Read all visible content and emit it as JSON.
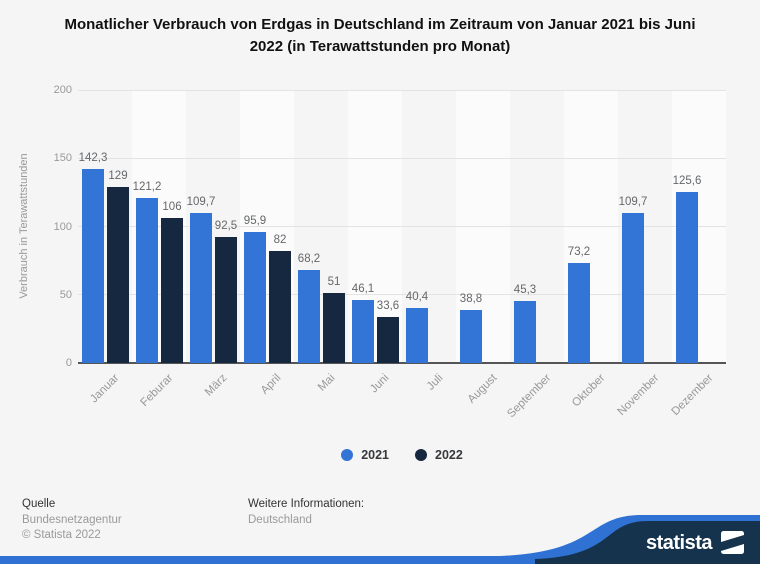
{
  "title": "Monatlicher Verbrauch von Erdgas in Deutschland im Zeitraum von Januar 2021 bis Juni 2022 (in Terawattstunden pro Monat)",
  "chart_data": {
    "type": "bar",
    "title": "Monatlicher Verbrauch von Erdgas in Deutschland im Zeitraum von Januar 2021 bis Juni 2022 (in Terawattstunden pro Monat)",
    "ylabel": "Verbrauch in Terawattstunden",
    "xlabel": "",
    "ylim": [
      0,
      200
    ],
    "yticks": [
      0,
      50,
      100,
      150,
      200
    ],
    "grid": true,
    "legend_position": "bottom-center",
    "categories": [
      "Januar",
      "Feburar",
      "März",
      "April",
      "Mai",
      "Juni",
      "Juli",
      "August",
      "September",
      "Oktober",
      "November",
      "Dezember"
    ],
    "series": [
      {
        "name": "2021",
        "color": "#3375d6",
        "values": [
          142.3,
          121.2,
          109.7,
          95.9,
          68.2,
          46.1,
          40.4,
          38.8,
          45.3,
          73.2,
          109.7,
          125.6
        ],
        "labels": [
          "142,3",
          "121,2",
          "109,7",
          "95,9",
          "68,2",
          "46,1",
          "40,4",
          "38,8",
          "45,3",
          "73,2",
          "109,7",
          "125,6"
        ]
      },
      {
        "name": "2022",
        "color": "#16283f",
        "values": [
          129,
          106,
          92.5,
          82,
          51,
          33.6,
          null,
          null,
          null,
          null,
          null,
          null
        ],
        "labels": [
          "129",
          "106",
          "92,5",
          "82",
          "51",
          "33,6",
          null,
          null,
          null,
          null,
          null,
          null
        ]
      }
    ]
  },
  "footer": {
    "source_heading": "Quelle",
    "source_name": "Bundesnetzagentur",
    "copyright": "© Statista 2022",
    "info_heading": "Weitere Informationen:",
    "info_value": "Deutschland"
  },
  "branding": {
    "logo_text": "statista",
    "navy": "#16334e",
    "blue": "#2f72d3"
  }
}
